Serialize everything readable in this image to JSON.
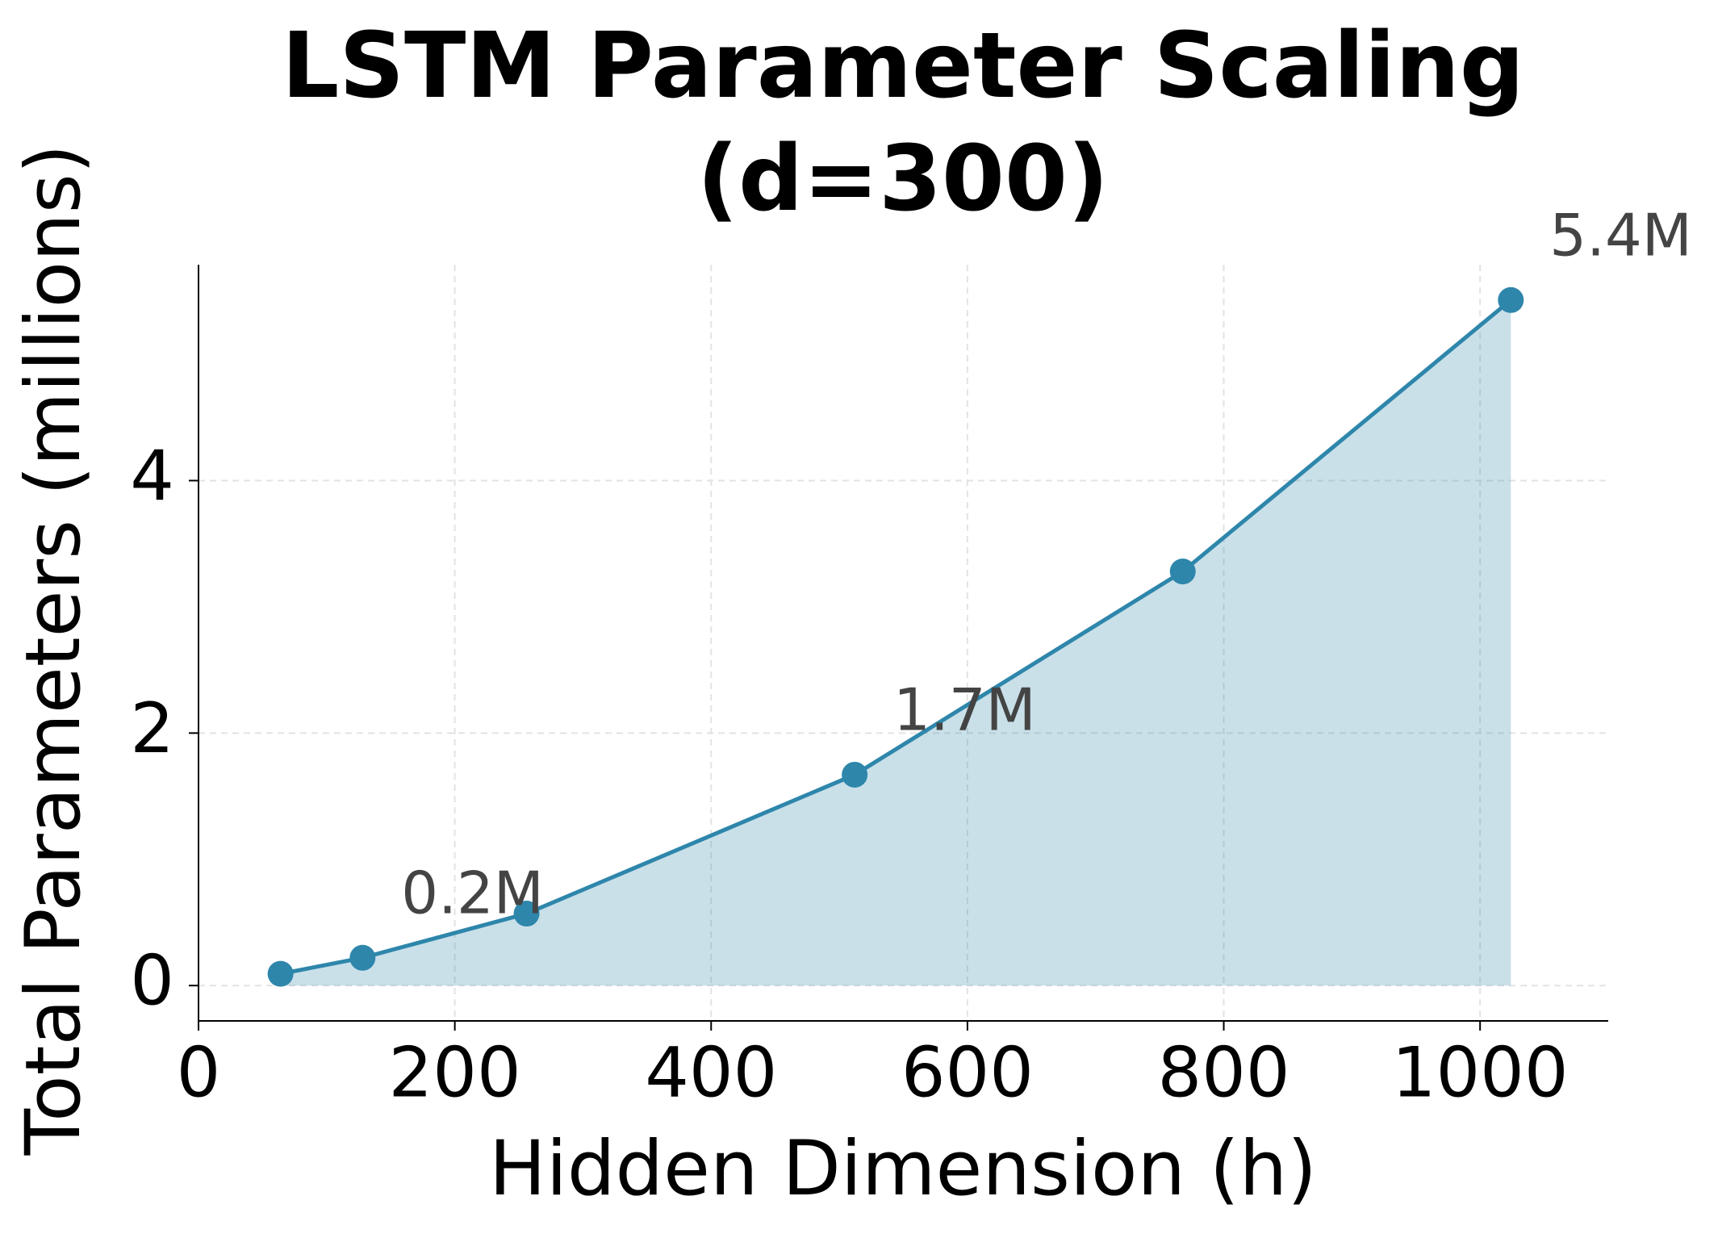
{
  "chart_data": {
    "type": "line",
    "title": "LSTM Parameter Scaling\n(d=300)",
    "x_label": "Hidden Dimension (h)",
    "y_label": "Total Parameters (millions)",
    "x": [
      64,
      128,
      256,
      512,
      768,
      1024
    ],
    "series": [
      {
        "color": "#2e86ab",
        "values": [
          0.093,
          0.22,
          0.57,
          1.67,
          3.28,
          5.43
        ],
        "value_labels": [
          null,
          "0.2M",
          null,
          "1.7M",
          null,
          "5.4M"
        ]
      }
    ],
    "xlim": [
      0,
      1100
    ],
    "ylim": [
      -0.28,
      5.71
    ],
    "xticks": [
      0,
      200,
      400,
      600,
      800,
      1000
    ],
    "yticks": [
      0,
      2,
      4
    ],
    "grid": true,
    "fill_under": true
  }
}
